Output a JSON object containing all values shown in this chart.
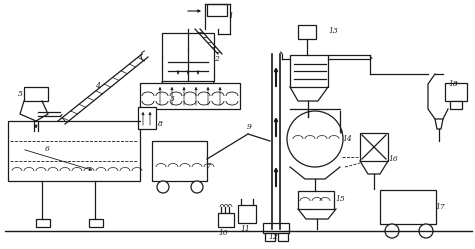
{
  "bg_color": "#ffffff",
  "line_color": "#1a1a1a",
  "fig_width": 4.75,
  "fig_height": 2.49,
  "dpi": 100
}
